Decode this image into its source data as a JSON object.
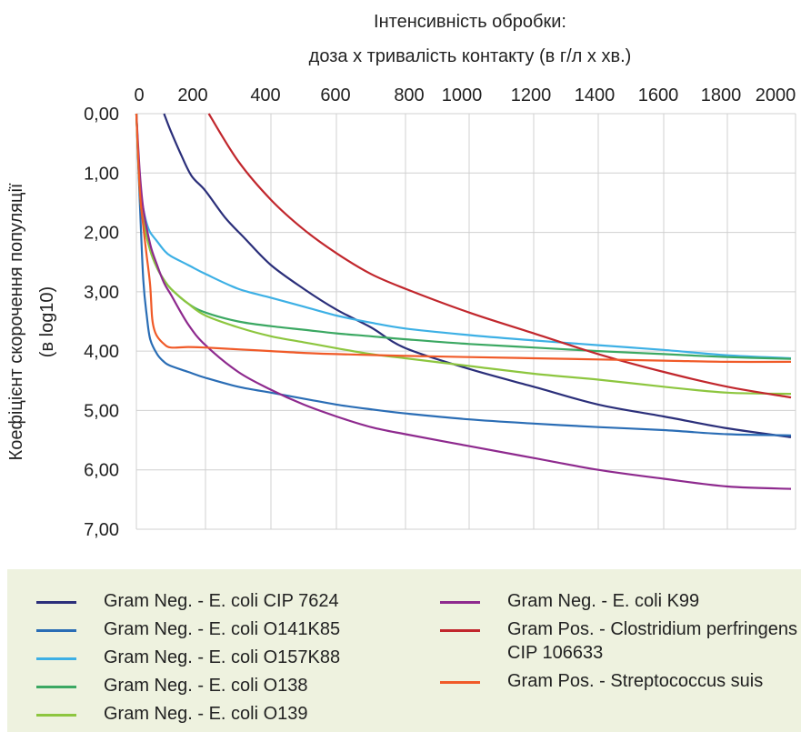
{
  "chart_data": {
    "type": "line",
    "title_line1": "Інтенсивність обробки:",
    "title_line2": "доза x тривалість контакту (в г/л x хв.)",
    "ylabel_line1": "Коефіцієнт скорочення популяції",
    "ylabel_line2": "(в log10)",
    "x_ticks": [
      "0",
      "200",
      "400",
      "600",
      "800",
      "1000",
      "1200",
      "1400",
      "1600",
      "1800",
      "2000"
    ],
    "y_ticks": [
      "0,00",
      "1,00",
      "2,00",
      "3,00",
      "4,00",
      "5,00",
      "6,00",
      "7,00"
    ],
    "y_values": [
      0,
      1,
      2,
      3,
      4,
      5,
      6,
      7
    ],
    "ylim": [
      0,
      7
    ],
    "y_inverted": true,
    "x_axis_position": "top",
    "grid": true,
    "series": [
      {
        "name": "Gram Neg. - E. coli CIP 7624",
        "color": "#2b2f7a",
        "points": [
          [
            80,
            0
          ],
          [
            100,
            0.3
          ],
          [
            130,
            0.7
          ],
          [
            160,
            1.05
          ],
          [
            200,
            1.3
          ],
          [
            260,
            1.75
          ],
          [
            320,
            2.1
          ],
          [
            400,
            2.55
          ],
          [
            500,
            2.95
          ],
          [
            600,
            3.3
          ],
          [
            700,
            3.6
          ],
          [
            800,
            3.95
          ],
          [
            1000,
            4.3
          ],
          [
            1200,
            4.6
          ],
          [
            1400,
            4.9
          ],
          [
            1600,
            5.1
          ],
          [
            1800,
            5.3
          ],
          [
            2000,
            5.45
          ]
        ]
      },
      {
        "name": "Gram Neg. - E. coli O141K85",
        "color": "#2a6db5",
        "points": [
          [
            0,
            0
          ],
          [
            10,
            1.5
          ],
          [
            20,
            2.8
          ],
          [
            30,
            3.4
          ],
          [
            40,
            3.8
          ],
          [
            60,
            4.05
          ],
          [
            80,
            4.18
          ],
          [
            100,
            4.25
          ],
          [
            150,
            4.35
          ],
          [
            200,
            4.45
          ],
          [
            300,
            4.6
          ],
          [
            400,
            4.7
          ],
          [
            500,
            4.8
          ],
          [
            600,
            4.9
          ],
          [
            700,
            4.98
          ],
          [
            800,
            5.05
          ],
          [
            1000,
            5.15
          ],
          [
            1200,
            5.22
          ],
          [
            1400,
            5.28
          ],
          [
            1600,
            5.33
          ],
          [
            1800,
            5.4
          ],
          [
            2000,
            5.42
          ]
        ]
      },
      {
        "name": "Gram Neg. - E. coli O157K88",
        "color": "#3db0e5",
        "points": [
          [
            0,
            0
          ],
          [
            10,
            1.2
          ],
          [
            20,
            1.6
          ],
          [
            30,
            1.85
          ],
          [
            40,
            2.0
          ],
          [
            60,
            2.15
          ],
          [
            80,
            2.3
          ],
          [
            100,
            2.4
          ],
          [
            150,
            2.55
          ],
          [
            200,
            2.7
          ],
          [
            300,
            2.95
          ],
          [
            400,
            3.1
          ],
          [
            500,
            3.25
          ],
          [
            600,
            3.4
          ],
          [
            700,
            3.52
          ],
          [
            800,
            3.62
          ],
          [
            1000,
            3.73
          ],
          [
            1200,
            3.82
          ],
          [
            1400,
            3.9
          ],
          [
            1600,
            3.98
          ],
          [
            1800,
            4.07
          ],
          [
            2000,
            4.12
          ]
        ]
      },
      {
        "name": "Gram Neg. - E. coli O138",
        "color": "#3ba862",
        "points": [
          [
            0,
            0
          ],
          [
            10,
            1.3
          ],
          [
            20,
            1.8
          ],
          [
            40,
            2.3
          ],
          [
            60,
            2.6
          ],
          [
            80,
            2.8
          ],
          [
            100,
            2.95
          ],
          [
            150,
            3.2
          ],
          [
            200,
            3.35
          ],
          [
            300,
            3.5
          ],
          [
            400,
            3.58
          ],
          [
            500,
            3.64
          ],
          [
            600,
            3.7
          ],
          [
            700,
            3.75
          ],
          [
            800,
            3.8
          ],
          [
            1000,
            3.88
          ],
          [
            1200,
            3.94
          ],
          [
            1400,
            4.0
          ],
          [
            1600,
            4.05
          ],
          [
            1800,
            4.1
          ],
          [
            2000,
            4.13
          ]
        ]
      },
      {
        "name": "Gram Neg. - E. coli O139",
        "color": "#8dc63f",
        "points": [
          [
            0,
            0
          ],
          [
            10,
            1.3
          ],
          [
            20,
            1.8
          ],
          [
            40,
            2.3
          ],
          [
            60,
            2.6
          ],
          [
            80,
            2.8
          ],
          [
            100,
            2.95
          ],
          [
            150,
            3.2
          ],
          [
            200,
            3.4
          ],
          [
            300,
            3.6
          ],
          [
            400,
            3.75
          ],
          [
            500,
            3.85
          ],
          [
            600,
            3.95
          ],
          [
            700,
            4.05
          ],
          [
            800,
            4.12
          ],
          [
            1000,
            4.25
          ],
          [
            1200,
            4.38
          ],
          [
            1400,
            4.48
          ],
          [
            1600,
            4.6
          ],
          [
            1800,
            4.7
          ],
          [
            2000,
            4.72
          ]
        ]
      },
      {
        "name": "Gram Neg. - E. coli K99",
        "color": "#8e2a8e",
        "points": [
          [
            0,
            0
          ],
          [
            10,
            1.0
          ],
          [
            20,
            1.6
          ],
          [
            40,
            2.2
          ],
          [
            60,
            2.55
          ],
          [
            80,
            2.85
          ],
          [
            100,
            3.05
          ],
          [
            150,
            3.55
          ],
          [
            200,
            3.9
          ],
          [
            300,
            4.35
          ],
          [
            400,
            4.65
          ],
          [
            500,
            4.9
          ],
          [
            600,
            5.1
          ],
          [
            700,
            5.28
          ],
          [
            800,
            5.4
          ],
          [
            1000,
            5.6
          ],
          [
            1200,
            5.8
          ],
          [
            1400,
            6.0
          ],
          [
            1600,
            6.15
          ],
          [
            1800,
            6.28
          ],
          [
            2000,
            6.32
          ]
        ]
      },
      {
        "name": "Gram Pos. - Clostridium perfringens CIP 106633",
        "color": "#c1272d",
        "points": [
          [
            210,
            0
          ],
          [
            300,
            0.8
          ],
          [
            400,
            1.45
          ],
          [
            500,
            1.95
          ],
          [
            600,
            2.35
          ],
          [
            700,
            2.7
          ],
          [
            800,
            2.95
          ],
          [
            1000,
            3.35
          ],
          [
            1200,
            3.7
          ],
          [
            1400,
            4.05
          ],
          [
            1600,
            4.35
          ],
          [
            1800,
            4.6
          ],
          [
            2000,
            4.78
          ]
        ]
      },
      {
        "name": "Gram Pos. - Streptococcus suis",
        "color": "#f05a28",
        "points": [
          [
            0,
            0
          ],
          [
            10,
            1.3
          ],
          [
            20,
            1.9
          ],
          [
            30,
            2.4
          ],
          [
            40,
            2.9
          ],
          [
            45,
            3.4
          ],
          [
            50,
            3.6
          ],
          [
            60,
            3.75
          ],
          [
            80,
            3.88
          ],
          [
            100,
            3.94
          ],
          [
            150,
            3.93
          ],
          [
            200,
            3.94
          ],
          [
            300,
            3.97
          ],
          [
            400,
            4.0
          ],
          [
            500,
            4.03
          ],
          [
            600,
            4.05
          ],
          [
            800,
            4.08
          ],
          [
            1000,
            4.1
          ],
          [
            1200,
            4.12
          ],
          [
            1400,
            4.14
          ],
          [
            1600,
            4.16
          ],
          [
            1800,
            4.18
          ],
          [
            2000,
            4.18
          ]
        ]
      }
    ]
  }
}
